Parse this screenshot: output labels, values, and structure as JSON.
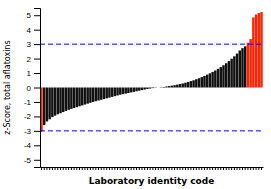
{
  "chart_data": {
    "type": "bar",
    "xlabel": "Laboratory identity code",
    "ylabel": "z-Score, total aflatoxins",
    "categories": [
      null,
      null,
      null,
      null,
      null,
      null,
      null,
      null,
      null,
      null,
      null,
      null,
      null,
      null,
      null,
      null,
      null,
      null,
      null,
      null,
      null,
      null,
      null,
      null,
      null,
      null,
      null,
      null,
      null,
      null,
      null,
      null,
      null,
      null,
      null,
      null,
      null,
      null,
      null,
      null,
      null,
      null,
      null,
      null,
      null,
      null,
      null,
      null,
      null,
      null,
      null,
      null,
      null,
      null,
      null,
      null,
      null,
      null,
      null,
      null,
      null,
      null,
      null,
      null,
      null,
      null,
      null,
      null,
      null,
      null,
      null,
      null,
      null,
      null,
      null,
      null,
      null,
      null,
      null,
      null,
      null,
      null
    ],
    "values": [
      -3.05,
      -2.6,
      -2.35,
      -2.2,
      -2.05,
      -1.95,
      -1.85,
      -1.78,
      -1.7,
      -1.62,
      -1.55,
      -1.48,
      -1.42,
      -1.36,
      -1.3,
      -1.24,
      -1.18,
      -1.12,
      -1.06,
      -1.0,
      -0.95,
      -0.9,
      -0.85,
      -0.8,
      -0.75,
      -0.7,
      -0.65,
      -0.6,
      -0.55,
      -0.5,
      -0.46,
      -0.42,
      -0.38,
      -0.34,
      -0.3,
      -0.26,
      -0.22,
      -0.18,
      -0.14,
      -0.1,
      -0.07,
      -0.04,
      -0.02,
      0.0,
      0.02,
      0.04,
      0.07,
      0.1,
      0.13,
      0.16,
      0.2,
      0.24,
      0.28,
      0.33,
      0.38,
      0.44,
      0.5,
      0.57,
      0.64,
      0.72,
      0.8,
      0.89,
      0.98,
      1.08,
      1.18,
      1.29,
      1.41,
      1.54,
      1.68,
      1.83,
      1.99,
      2.16,
      2.35,
      2.56,
      2.72,
      2.85,
      3.1,
      3.35,
      4.85,
      5.05,
      5.15,
      5.22
    ],
    "colors": [
      "#ff2200",
      "#111111",
      "#111111",
      "#111111",
      "#111111",
      "#111111",
      "#111111",
      "#111111",
      "#111111",
      "#111111",
      "#111111",
      "#111111",
      "#111111",
      "#111111",
      "#111111",
      "#111111",
      "#111111",
      "#111111",
      "#111111",
      "#111111",
      "#111111",
      "#111111",
      "#111111",
      "#111111",
      "#111111",
      "#111111",
      "#111111",
      "#111111",
      "#111111",
      "#111111",
      "#111111",
      "#111111",
      "#111111",
      "#111111",
      "#111111",
      "#111111",
      "#111111",
      "#111111",
      "#111111",
      "#111111",
      "#111111",
      "#111111",
      "#111111",
      "#111111",
      "#111111",
      "#111111",
      "#111111",
      "#111111",
      "#111111",
      "#111111",
      "#111111",
      "#111111",
      "#111111",
      "#111111",
      "#111111",
      "#111111",
      "#111111",
      "#111111",
      "#111111",
      "#111111",
      "#111111",
      "#111111",
      "#111111",
      "#111111",
      "#111111",
      "#111111",
      "#111111",
      "#111111",
      "#111111",
      "#111111",
      "#111111",
      "#111111",
      "#111111",
      "#111111",
      "#111111",
      "#111111",
      "#ff2200",
      "#ff2200",
      "#ff2200",
      "#ff2200",
      "#ff2200",
      "#ff2200"
    ],
    "hlines": [
      {
        "value": 3.0,
        "color": "blue",
        "line_style": "dashed"
      },
      {
        "value": -3.0,
        "color": "blue",
        "line_style": "dashed"
      }
    ],
    "ylim": [
      -5.5,
      5.5
    ],
    "yticks": [
      -5,
      -4,
      -3,
      -2,
      -1,
      0,
      1,
      2,
      3,
      4,
      5
    ],
    "tick_labels": "y"
  }
}
